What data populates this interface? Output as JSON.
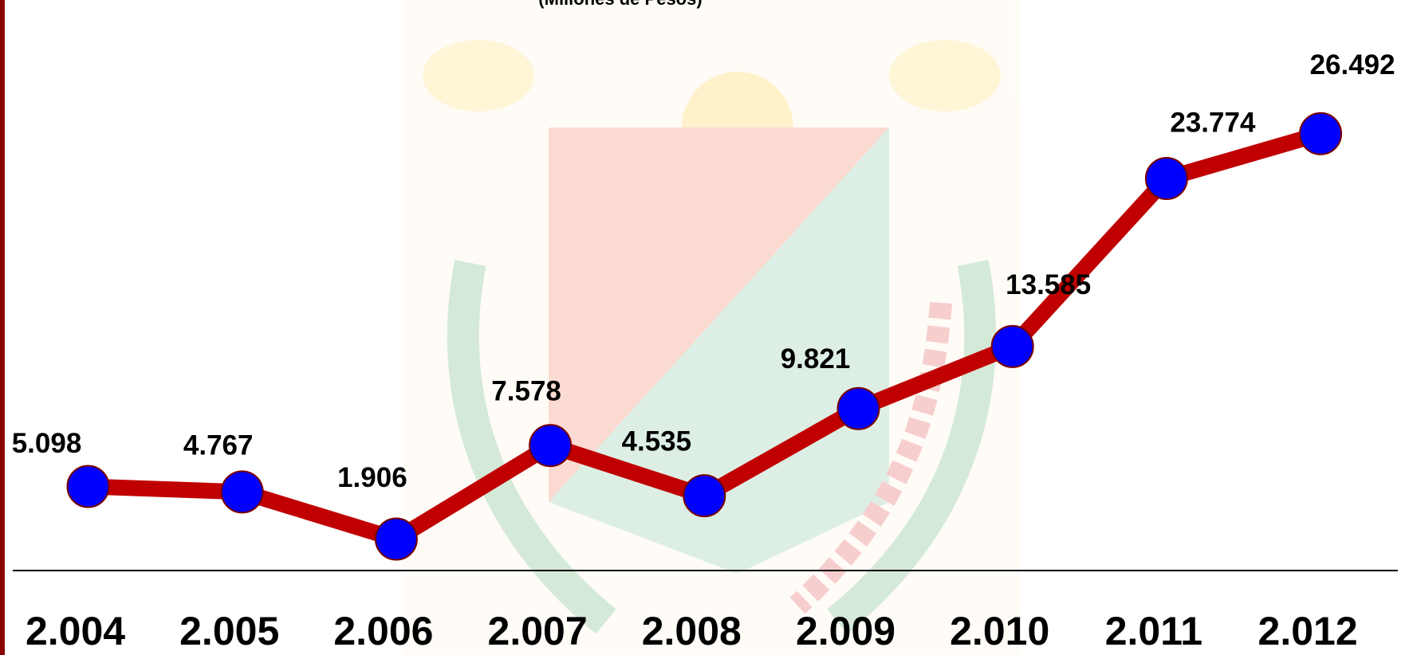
{
  "chart_data": {
    "type": "line",
    "subtitle": "(Millones de Pesos)",
    "categories": [
      "2.004",
      "2.005",
      "2.006",
      "2.007",
      "2.008",
      "2.009",
      "2.010",
      "2.011",
      "2.012"
    ],
    "series": [
      {
        "color": "#c00000",
        "values": [
          5098,
          4767,
          1906,
          7578,
          4535,
          9821,
          13585,
          23774,
          26492
        ],
        "value_labels": [
          "5.098",
          "4.767",
          "1.906",
          "7.578",
          "4.535",
          "9.821",
          "13.585",
          "23.774",
          "26.492"
        ]
      }
    ],
    "marker_color": "#0000ff",
    "ylim": [
      0,
      34600
    ]
  }
}
